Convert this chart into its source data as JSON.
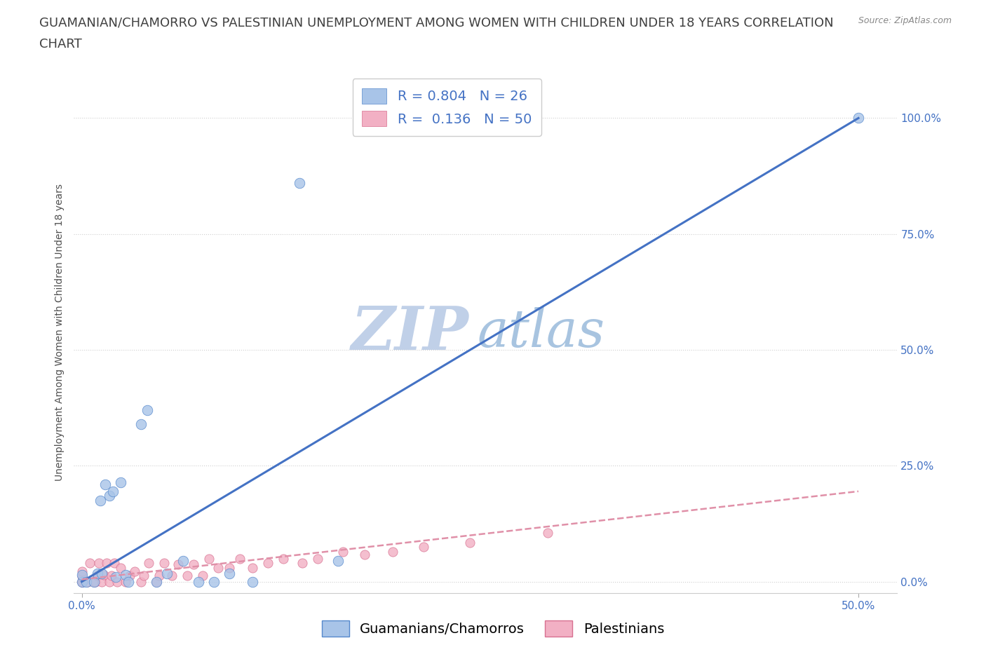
{
  "title_line1": "GUAMANIAN/CHAMORRO VS PALESTINIAN UNEMPLOYMENT AMONG WOMEN WITH CHILDREN UNDER 18 YEARS CORRELATION",
  "title_line2": "CHART",
  "source": "Source: ZipAtlas.com",
  "ylabel": "Unemployment Among Women with Children Under 18 years",
  "watermark_zip": "ZIP",
  "watermark_atlas": "atlas",
  "legend": {
    "guamanian": {
      "R": "0.804",
      "N": "26"
    },
    "palestinian": {
      "R": "0.136",
      "N": "50"
    }
  },
  "y_ticks_right": [
    "0.0%",
    "25.0%",
    "50.0%",
    "75.0%",
    "100.0%"
  ],
  "xlim": [
    -0.005,
    0.525
  ],
  "ylim": [
    -0.025,
    1.1
  ],
  "guamanian_scatter_x": [
    0.0,
    0.0,
    0.003,
    0.008,
    0.01,
    0.012,
    0.013,
    0.015,
    0.018,
    0.02,
    0.022,
    0.025,
    0.028,
    0.03,
    0.038,
    0.042,
    0.048,
    0.055,
    0.065,
    0.075,
    0.085,
    0.095,
    0.11,
    0.14,
    0.165,
    0.5
  ],
  "guamanian_scatter_y": [
    0.0,
    0.015,
    0.0,
    0.0,
    0.018,
    0.175,
    0.018,
    0.21,
    0.185,
    0.195,
    0.01,
    0.215,
    0.015,
    0.0,
    0.34,
    0.37,
    0.0,
    0.018,
    0.045,
    0.0,
    0.0,
    0.018,
    0.0,
    0.86,
    0.045,
    1.0
  ],
  "palestinian_scatter_x": [
    0.0,
    0.0,
    0.0,
    0.0,
    0.0,
    0.0,
    0.0,
    0.004,
    0.005,
    0.008,
    0.009,
    0.01,
    0.011,
    0.013,
    0.014,
    0.016,
    0.018,
    0.019,
    0.021,
    0.023,
    0.025,
    0.028,
    0.031,
    0.034,
    0.038,
    0.04,
    0.043,
    0.048,
    0.05,
    0.053,
    0.058,
    0.062,
    0.068,
    0.072,
    0.078,
    0.082,
    0.088,
    0.095,
    0.102,
    0.11,
    0.12,
    0.13,
    0.142,
    0.152,
    0.168,
    0.182,
    0.2,
    0.22,
    0.25,
    0.3
  ],
  "palestinian_scatter_y": [
    0.0,
    0.0,
    0.0,
    0.0,
    0.0,
    0.012,
    0.022,
    0.0,
    0.04,
    0.0,
    0.0,
    0.014,
    0.04,
    0.0,
    0.015,
    0.04,
    0.0,
    0.014,
    0.04,
    0.0,
    0.03,
    0.0,
    0.014,
    0.022,
    0.0,
    0.014,
    0.04,
    0.0,
    0.014,
    0.04,
    0.014,
    0.038,
    0.014,
    0.038,
    0.014,
    0.05,
    0.03,
    0.03,
    0.05,
    0.03,
    0.04,
    0.05,
    0.04,
    0.05,
    0.065,
    0.058,
    0.065,
    0.075,
    0.085,
    0.105
  ],
  "guamanian_line_x": [
    0.0,
    0.5
  ],
  "guamanian_line_y": [
    0.0,
    1.0
  ],
  "palestinian_line_x": [
    0.0,
    0.5
  ],
  "palestinian_line_y": [
    0.005,
    0.195
  ],
  "scatter_guamanian_color": "#a8c4e8",
  "scatter_guamanian_edge": "#5588cc",
  "scatter_palestinian_color": "#f2b0c4",
  "scatter_palestinian_edge": "#d87090",
  "guamanian_line_color": "#4472c4",
  "palestinian_line_color": "#d06080",
  "palestinian_dash_color": "#e090a8",
  "background_color": "#ffffff",
  "grid_color": "#d0d0d0",
  "title_color": "#404040",
  "axis_label_color": "#505050",
  "tick_color_blue": "#4472c4",
  "watermark_zip_color": "#c0d0e8",
  "watermark_atlas_color": "#a8c4e0",
  "legend_text_black": "#333333",
  "legend_text_blue": "#4472c4",
  "title_fontsize": 13,
  "axis_label_fontsize": 10,
  "tick_fontsize": 11,
  "legend_fontsize": 14,
  "source_fontsize": 9
}
